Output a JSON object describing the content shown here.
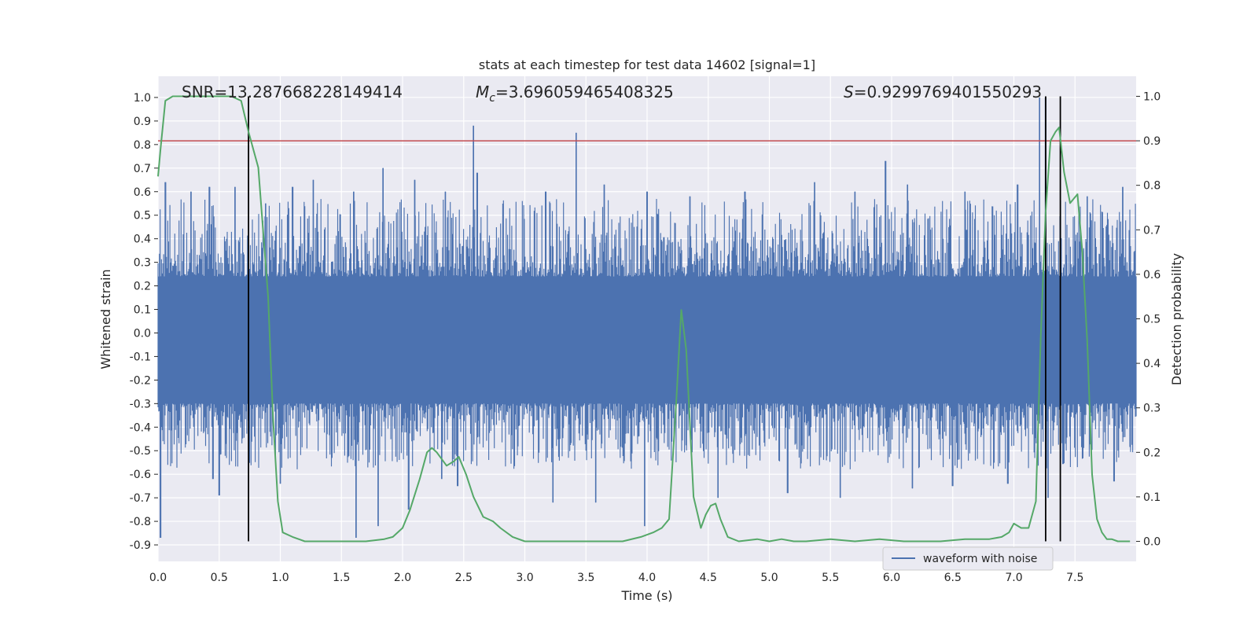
{
  "chart_data": {
    "type": "line",
    "title": "stats at each timestep for test data 14602 [signal=1]",
    "xlabel": "Time (s)",
    "ylabel_left": "Whitened strain",
    "ylabel_right": "Detection probability",
    "xlim": [
      0,
      8.0
    ],
    "ylim_left": [
      -0.97,
      1.09
    ],
    "ylim_right": [
      -0.045,
      1.045
    ],
    "x_ticks": [
      "0.0",
      "0.5",
      "1.0",
      "1.5",
      "2.0",
      "2.5",
      "3.0",
      "3.5",
      "4.0",
      "4.5",
      "5.0",
      "5.5",
      "6.0",
      "6.5",
      "7.0",
      "7.5"
    ],
    "y_left_ticks": [
      "1.0",
      "0.9",
      "0.8",
      "0.7",
      "0.6",
      "0.5",
      "0.4",
      "0.3",
      "0.2",
      "0.1",
      "0.0",
      "-0.1",
      "-0.2",
      "-0.3",
      "-0.4",
      "-0.5",
      "-0.6",
      "-0.7",
      "-0.8",
      "-0.9"
    ],
    "y_right_ticks": [
      "1.0",
      "0.9",
      "0.8",
      "0.7",
      "0.6",
      "0.5",
      "0.4",
      "0.3",
      "0.2",
      "0.1",
      "0.0"
    ],
    "annotations": {
      "snr": "SNR=13.287668228149414",
      "mc_symbol": "M",
      "mc_sub": "c",
      "mc_value": "=3.696059465408325",
      "s_symbol": "S",
      "s_value": "=0.9299769401550293"
    },
    "legend": {
      "label": "waveform with noise",
      "position": "lower-right"
    },
    "threshold": {
      "value": 0.9,
      "axis": "right",
      "color": "#c44e52"
    },
    "event_lines": [
      {
        "x": 0.74,
        "axis_range": [
          0.0,
          1.0
        ],
        "color": "#000000"
      },
      {
        "x": 7.26,
        "axis_range": [
          0.0,
          1.0
        ],
        "color": "#000000"
      },
      {
        "x": 7.38,
        "axis_range": [
          0.0,
          1.0
        ],
        "color": "#000000"
      }
    ],
    "series": [
      {
        "name": "waveform with noise",
        "axis": "left",
        "color": "#4c72b0",
        "summary": "dense whitened strain noise, approx uniform band -0.3..0.25 with spikes",
        "peaks": [
          [
            0.06,
            0.64
          ],
          [
            0.27,
            0.6
          ],
          [
            0.42,
            0.62
          ],
          [
            0.63,
            0.62
          ],
          [
            0.88,
            0.55
          ],
          [
            1.1,
            0.62
          ],
          [
            1.27,
            0.65
          ],
          [
            1.6,
            0.6
          ],
          [
            1.84,
            0.7
          ],
          [
            2.1,
            0.65
          ],
          [
            2.35,
            0.6
          ],
          [
            2.58,
            0.88
          ],
          [
            2.61,
            0.68
          ],
          [
            3.17,
            0.6
          ],
          [
            3.42,
            0.85
          ],
          [
            3.65,
            0.63
          ],
          [
            4.0,
            0.6
          ],
          [
            4.35,
            0.58
          ],
          [
            4.8,
            0.6
          ],
          [
            5.37,
            0.64
          ],
          [
            5.7,
            0.6
          ],
          [
            5.95,
            0.73
          ],
          [
            6.13,
            0.63
          ],
          [
            6.6,
            0.6
          ],
          [
            7.03,
            0.63
          ],
          [
            7.21,
            1.0
          ],
          [
            7.26,
            1.0
          ],
          [
            7.6,
            0.58
          ],
          [
            7.89,
            0.62
          ]
        ],
        "troughs": [
          [
            0.02,
            -0.87
          ],
          [
            0.45,
            -0.62
          ],
          [
            0.5,
            -0.69
          ],
          [
            1.0,
            -0.64
          ],
          [
            1.62,
            -0.87
          ],
          [
            1.8,
            -0.82
          ],
          [
            2.05,
            -0.75
          ],
          [
            2.32,
            -0.62
          ],
          [
            2.45,
            -0.65
          ],
          [
            3.23,
            -0.72
          ],
          [
            3.58,
            -0.72
          ],
          [
            3.98,
            -0.82
          ],
          [
            4.58,
            -0.7
          ],
          [
            5.15,
            -0.68
          ],
          [
            5.58,
            -0.7
          ],
          [
            6.17,
            -0.66
          ],
          [
            6.5,
            -0.65
          ],
          [
            6.95,
            -0.64
          ],
          [
            7.28,
            -0.7
          ],
          [
            7.82,
            -0.63
          ]
        ]
      },
      {
        "name": "detection probability",
        "axis": "right",
        "color": "#55a868",
        "x": [
          0.0,
          0.02,
          0.06,
          0.12,
          0.2,
          0.3,
          0.4,
          0.5,
          0.6,
          0.68,
          0.74,
          0.82,
          0.9,
          0.94,
          0.98,
          1.02,
          1.1,
          1.2,
          1.3,
          1.5,
          1.7,
          1.85,
          1.92,
          2.0,
          2.06,
          2.14,
          2.2,
          2.24,
          2.28,
          2.36,
          2.42,
          2.46,
          2.52,
          2.58,
          2.66,
          2.74,
          2.8,
          2.9,
          3.0,
          3.2,
          3.4,
          3.6,
          3.8,
          3.95,
          4.05,
          4.12,
          4.18,
          4.24,
          4.28,
          4.32,
          4.38,
          4.44,
          4.48,
          4.52,
          4.56,
          4.6,
          4.66,
          4.75,
          4.9,
          5.0,
          5.1,
          5.2,
          5.3,
          5.5,
          5.7,
          5.9,
          6.1,
          6.4,
          6.6,
          6.8,
          6.9,
          6.96,
          7.0,
          7.06,
          7.12,
          7.18,
          7.22,
          7.26,
          7.3,
          7.34,
          7.37,
          7.41,
          7.46,
          7.52,
          7.56,
          7.6,
          7.64,
          7.68,
          7.72,
          7.76,
          7.8,
          7.85,
          7.95
        ],
        "values": [
          0.82,
          0.88,
          0.99,
          1.0,
          1.0,
          1.0,
          1.0,
          1.0,
          1.0,
          0.99,
          0.92,
          0.84,
          0.55,
          0.28,
          0.09,
          0.02,
          0.01,
          0.0,
          0.0,
          0.0,
          0.0,
          0.005,
          0.01,
          0.03,
          0.07,
          0.14,
          0.2,
          0.21,
          0.2,
          0.17,
          0.18,
          0.19,
          0.15,
          0.1,
          0.055,
          0.045,
          0.03,
          0.01,
          0.0,
          0.0,
          0.0,
          0.0,
          0.0,
          0.01,
          0.02,
          0.03,
          0.05,
          0.32,
          0.52,
          0.43,
          0.1,
          0.03,
          0.06,
          0.08,
          0.085,
          0.05,
          0.01,
          0.0,
          0.005,
          0.0,
          0.005,
          0.0,
          0.0,
          0.005,
          0.0,
          0.005,
          0.0,
          0.0,
          0.005,
          0.005,
          0.01,
          0.02,
          0.04,
          0.03,
          0.03,
          0.09,
          0.46,
          0.74,
          0.9,
          0.92,
          0.93,
          0.83,
          0.76,
          0.78,
          0.65,
          0.45,
          0.15,
          0.05,
          0.02,
          0.005,
          0.005,
          0.0,
          0.0
        ]
      }
    ]
  }
}
